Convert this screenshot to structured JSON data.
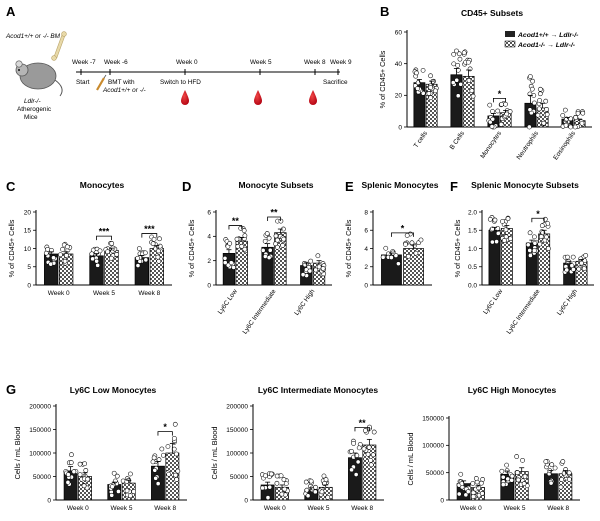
{
  "figure": {
    "timeline": {
      "letter": "A",
      "bm_label": "Acod1+/+ or -/- BM",
      "mouse_label": [
        "Ldlr-/-",
        "Atherogenic",
        "Mice"
      ],
      "week_labels": [
        "Week -7",
        "Week -6",
        "Week 0",
        "Week 5",
        "Week 8",
        "Week 9"
      ],
      "event_labels": [
        "Start",
        "BMT with",
        "Acod1+/+ or -/-",
        "Switch to HFD",
        "Sacrifice"
      ]
    },
    "legend": {
      "labels": [
        "Acod1+/+ → Ldlr-/-",
        "Acod1-/- → Ldlr-/-"
      ]
    }
  },
  "chart_data": [
    {
      "id": "B",
      "letter": "B",
      "type": "bar",
      "title": "CD45+ Subsets",
      "ylabel": "% of CD45+ Cells",
      "ylim": [
        0,
        60
      ],
      "yticks": [
        "0",
        "20",
        "40",
        "60"
      ],
      "categories": [
        "T cells",
        "B Cells",
        "Monocytes",
        "Neutrophils",
        "Eosinophils"
      ],
      "rotate_labels": true,
      "series": [
        {
          "name": "Acod1+/+ → Ldlr-/-",
          "values": [
            28,
            33,
            7,
            15,
            5
          ],
          "errors": [
            2,
            4,
            1.5,
            5,
            1
          ]
        },
        {
          "name": "Acod1-/- → Ldlr-/-",
          "values": [
            27,
            32,
            9,
            12,
            4
          ],
          "errors": [
            2,
            4,
            1.5,
            3,
            1
          ]
        }
      ],
      "annotations": [
        {
          "category": 2,
          "label": "*"
        }
      ]
    },
    {
      "id": "C",
      "letter": "C",
      "type": "bar",
      "title": "Monocytes",
      "ylabel": "% of CD45+ Cells",
      "ylim": [
        0,
        20
      ],
      "yticks": [
        "0",
        "5",
        "10",
        "15",
        "20"
      ],
      "categories": [
        "Week 0",
        "Week 5",
        "Week 8"
      ],
      "rotate_labels": false,
      "series": [
        {
          "name": "Acod1+/+ → Ldlr-/-",
          "values": [
            8.5,
            8,
            7.5
          ],
          "errors": [
            0.6,
            0.6,
            0.6
          ]
        },
        {
          "name": "Acod1-/- → Ldlr-/-",
          "values": [
            8.5,
            9.5,
            10
          ],
          "errors": [
            0.6,
            0.6,
            0.8
          ]
        }
      ],
      "annotations": [
        {
          "category": 1,
          "label": "***"
        },
        {
          "category": 2,
          "label": "***"
        }
      ]
    },
    {
      "id": "D",
      "letter": "D",
      "type": "bar",
      "title": "Monocyte Subsets",
      "ylabel": "% of CD45+ Cells",
      "ylim": [
        0,
        6
      ],
      "yticks": [
        "0",
        "2",
        "4",
        "6"
      ],
      "categories": [
        "Ly6C Low",
        "Ly6C Intermediate",
        "Ly6C High"
      ],
      "rotate_labels": true,
      "series": [
        {
          "name": "Acod1+/+ → Ldlr-/-",
          "values": [
            2.6,
            3.1,
            1.6
          ],
          "errors": [
            0.3,
            0.3,
            0.2
          ]
        },
        {
          "name": "Acod1-/- → Ldlr-/-",
          "values": [
            3.6,
            4.3,
            1.8
          ],
          "errors": [
            0.3,
            0.3,
            0.2
          ]
        }
      ],
      "annotations": [
        {
          "category": 0,
          "label": "**"
        },
        {
          "category": 1,
          "label": "**"
        }
      ]
    },
    {
      "id": "E",
      "letter": "E",
      "type": "bar",
      "title": "Splenic Monocytes",
      "ylabel": "% of CD45+ Cells",
      "ylim": [
        0,
        8
      ],
      "yticks": [
        "0",
        "2",
        "4",
        "6",
        "8"
      ],
      "categories": [
        ""
      ],
      "rotate_labels": false,
      "series": [
        {
          "name": "Acod1+/+ → Ldlr-/-",
          "values": [
            3.3
          ],
          "errors": [
            0.2
          ]
        },
        {
          "name": "Acod1-/- → Ldlr-/-",
          "values": [
            4.0
          ],
          "errors": [
            0.4
          ]
        }
      ],
      "annotations": [
        {
          "category": 0,
          "label": "*"
        }
      ]
    },
    {
      "id": "F",
      "letter": "F",
      "type": "bar",
      "title": "Splenic Monocyte Subsets",
      "ylabel": "% of CD45+ Cells",
      "ylim": [
        0,
        2.0
      ],
      "yticks": [
        "0.0",
        "0.5",
        "1.0",
        "1.5",
        "2.0"
      ],
      "categories": [
        "Ly6C Low",
        "Ly6C Intermediate",
        "Ly6C High"
      ],
      "rotate_labels": true,
      "series": [
        {
          "name": "Acod1+/+ → Ldlr-/-",
          "values": [
            1.5,
            1.15,
            0.6
          ],
          "errors": [
            0.08,
            0.08,
            0.05
          ]
        },
        {
          "name": "Acod1-/- → Ldlr-/-",
          "values": [
            1.55,
            1.4,
            0.65
          ],
          "errors": [
            0.08,
            0.1,
            0.05
          ]
        }
      ],
      "annotations": [
        {
          "category": 1,
          "label": "*"
        }
      ]
    },
    {
      "id": "G1",
      "letter": "G",
      "type": "bar",
      "title": "Ly6C Low Monocytes",
      "ylabel": "Cells / mL Blood",
      "ylim": [
        0,
        200000
      ],
      "yticks": [
        "0",
        "50000",
        "100000",
        "150000",
        "200000"
      ],
      "categories": [
        "Week 0",
        "Week 5",
        "Week 8"
      ],
      "rotate_labels": false,
      "series": [
        {
          "name": "Acod1+/+ → Ldlr-/-",
          "values": [
            62000,
            33000,
            72000
          ],
          "errors": [
            9000,
            5000,
            10000
          ]
        },
        {
          "name": "Acod1-/- → Ldlr-/-",
          "values": [
            50000,
            36000,
            100000
          ],
          "errors": [
            8000,
            6000,
            20000
          ]
        }
      ],
      "annotations": [
        {
          "category": 2,
          "label": "*"
        }
      ]
    },
    {
      "id": "G2",
      "letter": "",
      "type": "bar",
      "title": "Ly6C Intermediate Monocytes",
      "ylabel": "Cells / mL Blood",
      "ylim": [
        0,
        200000
      ],
      "yticks": [
        "0",
        "50000",
        "100000",
        "150000",
        "200000"
      ],
      "categories": [
        "Week 0",
        "Week 5",
        "Week 8"
      ],
      "rotate_labels": false,
      "series": [
        {
          "name": "Acod1+/+ → Ldlr-/-",
          "values": [
            32000,
            22000,
            90000
          ],
          "errors": [
            6000,
            4000,
            10000
          ]
        },
        {
          "name": "Acod1-/- → Ldlr-/-",
          "values": [
            27000,
            27000,
            117000
          ],
          "errors": [
            5000,
            5000,
            12000
          ]
        }
      ],
      "annotations": [
        {
          "category": 2,
          "label": "**"
        }
      ]
    },
    {
      "id": "G3",
      "letter": "",
      "type": "bar",
      "title": "Ly6C High Monocytes",
      "ylabel": "Cells / mL Blood",
      "ylim": [
        0,
        150000
      ],
      "yticks": [
        "0",
        "50000",
        "100000",
        "150000"
      ],
      "categories": [
        "Week 0",
        "Week 5",
        "Week 8"
      ],
      "rotate_labels": false,
      "series": [
        {
          "name": "Acod1+/+ → Ldlr-/-",
          "values": [
            30000,
            47000,
            48000
          ],
          "errors": [
            5000,
            6000,
            6000
          ]
        },
        {
          "name": "Acod1-/- → Ldlr-/-",
          "values": [
            23000,
            52000,
            48000
          ],
          "errors": [
            4000,
            7000,
            6000
          ]
        }
      ],
      "annotations": []
    }
  ]
}
